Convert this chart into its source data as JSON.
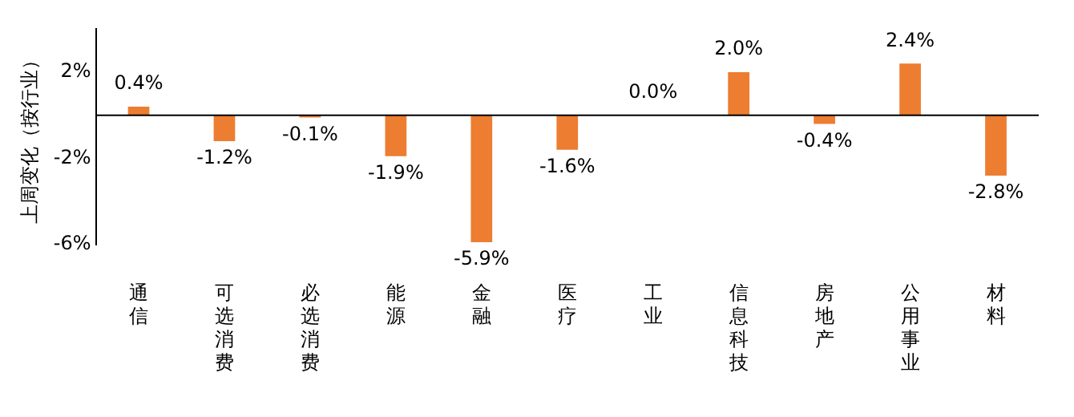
{
  "chart_data": {
    "type": "bar",
    "ylabel": "上周变化（按行业）",
    "categories": [
      "通信",
      "可选消费",
      "必选消费",
      "能源",
      "金融",
      "医疗",
      "工业",
      "信息科技",
      "房地产",
      "公用事业",
      "材料"
    ],
    "values": [
      0.4,
      -1.2,
      -0.1,
      -1.9,
      -5.9,
      -1.6,
      0.0,
      2.0,
      -0.4,
      2.4,
      -2.8
    ],
    "value_labels": [
      "0.4%",
      "-1.2%",
      "-0.1%",
      "-1.9%",
      "-5.9%",
      "-1.6%",
      "0.0%",
      "2.0%",
      "-0.4%",
      "2.4%",
      "-2.8%"
    ],
    "color": "#ed7d31",
    "ylim": [
      -6,
      4
    ],
    "yticks": [
      {
        "value": 2,
        "label": "2%"
      },
      {
        "value": -2,
        "label": "-2%"
      },
      {
        "value": -6,
        "label": "-6%"
      }
    ],
    "grid": false,
    "legend": false
  }
}
